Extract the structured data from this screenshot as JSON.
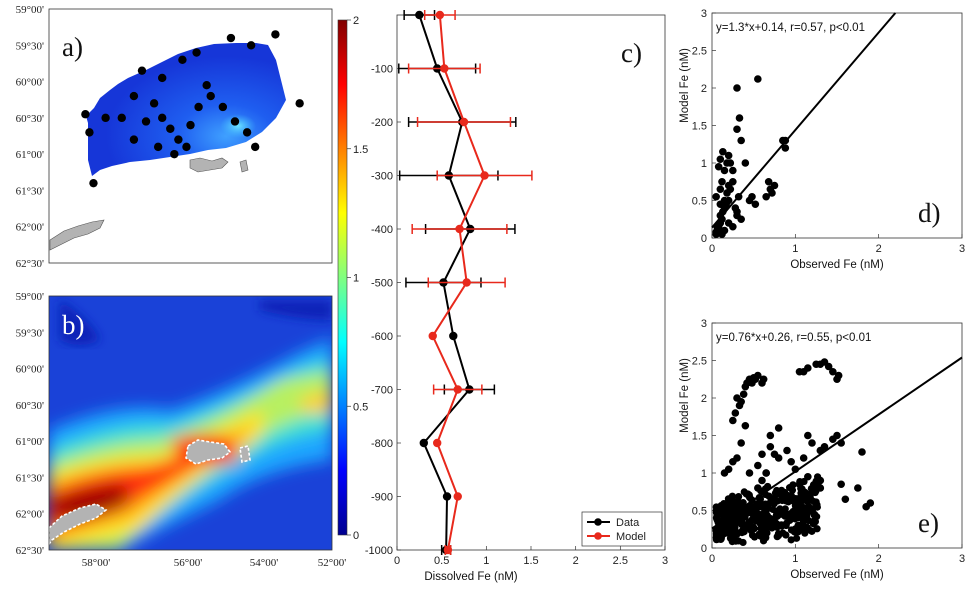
{
  "panels": {
    "a": {
      "label": "a)"
    },
    "b": {
      "label": "b)"
    },
    "c": {
      "label": "c)"
    },
    "d": {
      "label": "d)"
    },
    "e": {
      "label": "e)"
    }
  },
  "map_axes": {
    "lat_ticks": [
      "59°00'",
      "59°30'",
      "60°00'",
      "60°30'",
      "61°00'",
      "61°30'",
      "62°00'",
      "62°30'"
    ],
    "lon_ticks": [
      "58°00'",
      "56°00'",
      "54°00'",
      "52°00'"
    ]
  },
  "colorbar": {
    "ticks": [
      "0",
      "0.5",
      "1",
      "1.5",
      "2"
    ],
    "stops": [
      "#00008f",
      "#0000ff",
      "#0080ff",
      "#00ffff",
      "#80ff80",
      "#ffff00",
      "#ff8000",
      "#ff0000",
      "#800000"
    ]
  },
  "chart_data": [
    {
      "type": "line",
      "panel": "c",
      "xlabel": "Dissolved Fe (nM)",
      "ylabel": "",
      "xlim": [
        0,
        3
      ],
      "ylim": [
        -1000,
        0
      ],
      "xticks": [
        "0",
        "0.5",
        "1",
        "1.5",
        "2",
        "2.5",
        "3"
      ],
      "yticks": [
        "-100",
        "-200",
        "-300",
        "-400",
        "-500",
        "-600",
        "-700",
        "-800",
        "-900",
        "-1000"
      ],
      "legend_position": "bottom-right",
      "series": [
        {
          "name": "Data",
          "color": "#000000",
          "depth": [
            0,
            -100,
            -200,
            -300,
            -400,
            -500,
            -600,
            -700,
            -800,
            -900,
            -1000
          ],
          "values": [
            0.25,
            0.45,
            0.73,
            0.58,
            0.82,
            0.52,
            0.63,
            0.81,
            0.3,
            0.56,
            0.55
          ],
          "errors": [
            0.17,
            0.43,
            0.6,
            0.55,
            0.5,
            0.42,
            0,
            0.28,
            0,
            0,
            0.05
          ]
        },
        {
          "name": "Model",
          "color": "#e8291c",
          "depth": [
            0,
            -100,
            -200,
            -300,
            -400,
            -500,
            -600,
            -700,
            -800,
            -900,
            -1000
          ],
          "values": [
            0.48,
            0.53,
            0.75,
            0.98,
            0.7,
            0.78,
            0.4,
            0.68,
            0.45,
            0.68,
            0.57
          ],
          "errors": [
            0.17,
            0.4,
            0.52,
            0.53,
            0.53,
            0.43,
            0,
            0.27,
            0,
            0,
            0.03
          ]
        }
      ]
    },
    {
      "type": "scatter",
      "panel": "d",
      "xlabel": "Observed Fe (nM)",
      "ylabel": "Model Fe (nM)",
      "xlim": [
        0,
        3
      ],
      "ylim": [
        0,
        3
      ],
      "xticks": [
        "0",
        "1",
        "2",
        "3"
      ],
      "yticks": [
        "0",
        "0.5",
        "1",
        "1.5",
        "2",
        "2.5",
        "3"
      ],
      "annotation": "y=1.3*x+0.14, r=0.57, p<0.01",
      "fit": {
        "slope": 1.3,
        "intercept": 0.14
      },
      "x": [
        0.05,
        0.07,
        0.08,
        0.1,
        0.1,
        0.12,
        0.13,
        0.15,
        0.15,
        0.17,
        0.18,
        0.2,
        0.2,
        0.22,
        0.25,
        0.25,
        0.28,
        0.3,
        0.3,
        0.32,
        0.35,
        0.1,
        0.12,
        0.15,
        0.18,
        0.2,
        0.05,
        0.08,
        0.1,
        0.13,
        0.3,
        0.33,
        0.35,
        0.55,
        0.3,
        0.2,
        0.25,
        0.12,
        0.15,
        0.65,
        0.68,
        0.7,
        0.72,
        0.75,
        0.85,
        0.88,
        0.88,
        0.45,
        0.48,
        0.52,
        0.4,
        0.22,
        0.1,
        0.05,
        0.06
      ],
      "y": [
        0.05,
        0.1,
        0.15,
        0.2,
        0.3,
        0.25,
        0.35,
        0.4,
        0.5,
        0.45,
        0.6,
        0.5,
        0.7,
        0.65,
        0.75,
        0.9,
        0.4,
        0.3,
        0.35,
        0.55,
        0.25,
        0.65,
        0.75,
        0.9,
        1.0,
        1.1,
        0.55,
        0.95,
        1.05,
        1.15,
        2.0,
        1.6,
        1.3,
        2.12,
        1.45,
        0.2,
        0.15,
        0.05,
        0.1,
        0.55,
        0.75,
        0.65,
        0.6,
        0.7,
        1.3,
        1.3,
        1.2,
        0.5,
        0.55,
        0.45,
        1.0,
        1.0,
        0.45,
        0.08,
        0.15
      ]
    },
    {
      "type": "scatter",
      "panel": "e",
      "xlabel": "Observed Fe (nM)",
      "ylabel": "Model Fe (nM)",
      "xlim": [
        0,
        3
      ],
      "ylim": [
        0,
        3
      ],
      "xticks": [
        "0",
        "1",
        "2",
        "3"
      ],
      "yticks": [
        "0",
        "0.5",
        "1",
        "1.5",
        "2",
        "2.5",
        "3"
      ],
      "annotation": "y=0.76*x+0.26, r=0.55, p<0.01",
      "fit": {
        "slope": 0.76,
        "intercept": 0.26
      },
      "x": [
        0.35,
        0.38,
        0.4,
        0.42,
        0.45,
        0.48,
        0.5,
        0.52,
        0.55,
        0.6,
        0.62,
        0.25,
        0.28,
        0.3,
        0.33,
        1.05,
        1.15,
        1.25,
        1.3,
        1.35,
        1.4,
        1.45,
        1.5,
        1.52,
        1.1,
        0.3,
        0.35,
        0.45,
        0.55,
        0.6,
        0.65,
        0.7,
        0.75,
        0.8,
        0.9,
        0.95,
        1.0,
        1.1,
        1.15,
        1.2,
        1.3,
        1.35,
        1.45,
        1.5,
        1.55,
        1.8,
        0.15,
        0.2,
        0.25,
        0.55,
        0.6,
        0.65,
        0.95,
        1.05,
        1.2,
        1.3,
        1.6,
        1.75,
        1.85,
        1.9,
        1.55,
        1.3,
        1.15,
        0.7,
        0.8,
        0.4
      ],
      "y": [
        1.95,
        2.05,
        2.15,
        2.2,
        2.25,
        2.2,
        2.27,
        2.25,
        2.3,
        2.2,
        2.25,
        1.7,
        1.8,
        2.0,
        1.9,
        2.35,
        2.4,
        2.45,
        2.45,
        2.48,
        2.42,
        2.35,
        2.25,
        2.3,
        2.35,
        1.2,
        1.4,
        1.0,
        1.1,
        1.25,
        1.0,
        1.35,
        1.25,
        1.2,
        1.3,
        1.15,
        1.05,
        1.2,
        1.5,
        1.4,
        1.3,
        1.35,
        1.45,
        1.5,
        1.4,
        1.28,
        1.0,
        1.05,
        1.15,
        0.8,
        0.9,
        1.0,
        0.7,
        0.85,
        0.75,
        0.9,
        0.65,
        0.8,
        0.55,
        0.6,
        0.85,
        0.8,
        0.95,
        1.5,
        1.6,
        1.63
      ],
      "cloud": {
        "x_range": [
          0.05,
          1.3
        ],
        "y_range": [
          0.05,
          1.0
        ],
        "count": 420,
        "center": [
          0.35,
          0.5
        ]
      }
    }
  ],
  "map_a_stations": [
    [
      -57.9,
      61.4
    ],
    [
      -58.0,
      60.7
    ],
    [
      -58.1,
      60.45
    ],
    [
      -57.6,
      60.5
    ],
    [
      -57.2,
      60.5
    ],
    [
      -56.9,
      60.2
    ],
    [
      -56.7,
      59.85
    ],
    [
      -56.4,
      60.3
    ],
    [
      -56.2,
      60.5
    ],
    [
      -56.0,
      60.65
    ],
    [
      -55.8,
      60.8
    ],
    [
      -55.5,
      60.6
    ],
    [
      -55.3,
      60.35
    ],
    [
      -55.0,
      60.2
    ],
    [
      -54.7,
      60.35
    ],
    [
      -54.4,
      60.55
    ],
    [
      -54.1,
      60.7
    ],
    [
      -53.9,
      60.9
    ],
    [
      -56.2,
      59.95
    ],
    [
      -55.7,
      59.7
    ],
    [
      -55.35,
      59.6
    ],
    [
      -55.1,
      60.05
    ],
    [
      -54.5,
      59.4
    ],
    [
      -54.0,
      59.5
    ],
    [
      -53.4,
      59.35
    ],
    [
      -52.8,
      60.3
    ],
    [
      -56.6,
      60.55
    ],
    [
      -56.9,
      60.8
    ],
    [
      -56.3,
      60.9
    ],
    [
      -55.9,
      61.0
    ],
    [
      -55.6,
      60.9
    ]
  ]
}
